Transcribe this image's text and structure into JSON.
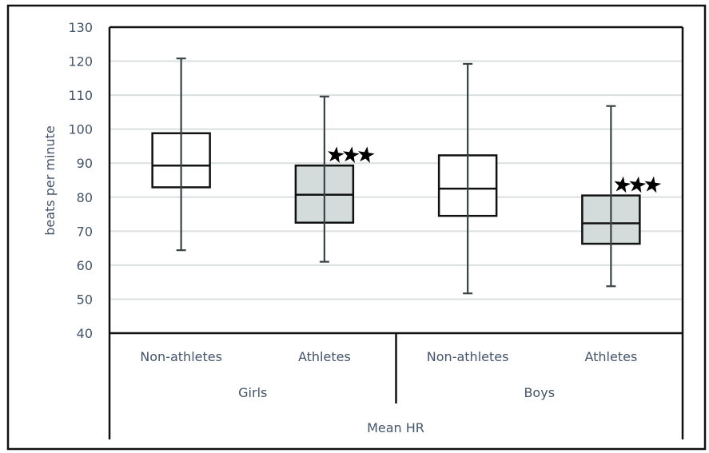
{
  "chart_data": {
    "type": "boxplot",
    "title": "",
    "xlabel": "Mean HR",
    "ylabel": "beats per minute",
    "ylim": [
      40,
      130
    ],
    "yticks": [
      40,
      50,
      60,
      70,
      80,
      90,
      100,
      110,
      120,
      130
    ],
    "grid": true,
    "groups": [
      {
        "name": "Girls",
        "boxes": [
          {
            "category": "Non-athletes",
            "min": 64.4,
            "q1": 82.9,
            "median": 89.3,
            "q3": 98.8,
            "max": 120.8,
            "filled": false,
            "significance": ""
          },
          {
            "category": "Athletes",
            "min": 61.0,
            "q1": 72.5,
            "median": 80.7,
            "q3": 89.3,
            "max": 109.6,
            "filled": true,
            "significance": "***"
          }
        ]
      },
      {
        "name": "Boys",
        "boxes": [
          {
            "category": "Non-athletes",
            "min": 51.7,
            "q1": 74.5,
            "median": 82.5,
            "q3": 92.3,
            "max": 119.2,
            "filled": false,
            "significance": ""
          },
          {
            "category": "Athletes",
            "min": 53.8,
            "q1": 66.3,
            "median": 72.3,
            "q3": 80.5,
            "max": 106.8,
            "filled": true,
            "significance": "***"
          }
        ]
      }
    ],
    "colors": {
      "box_fill_athletes": "#d4dcdb",
      "box_fill_nonathletes": "#ffffff",
      "box_stroke": "#111111",
      "whisker": "#3a4444",
      "gridline": "#d9e0df",
      "text": "#44546a",
      "star": "#000000"
    }
  }
}
